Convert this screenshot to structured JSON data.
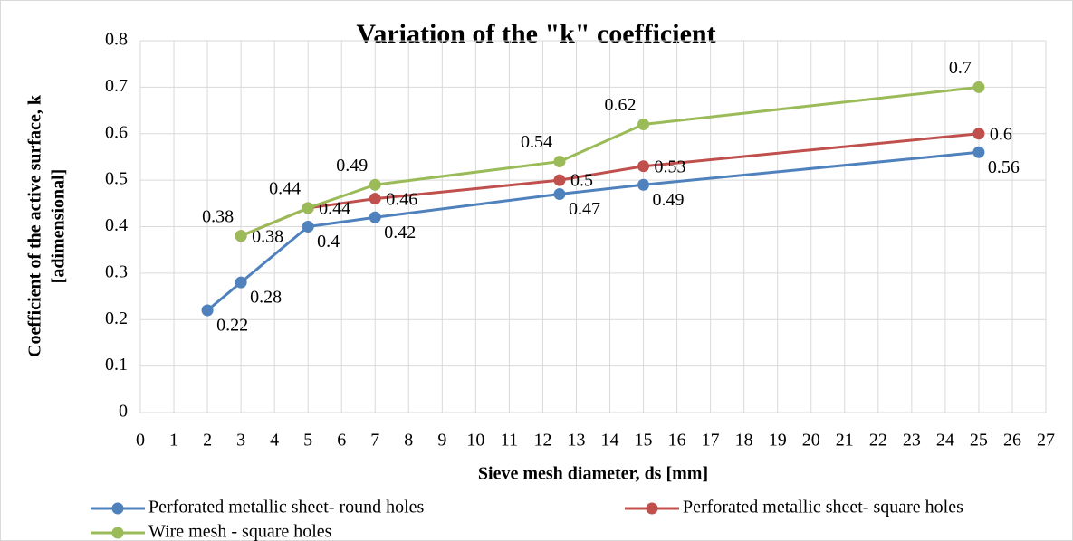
{
  "chart_data": {
    "type": "line",
    "title": "Variation of the \"k\" coefficient",
    "x_label": "Sieve mesh diameter, ds [mm]",
    "y_label": [
      "Coefficient of the active surface, k",
      "[adimensional]"
    ],
    "series": [
      {
        "name": "Perforated metallic sheet- round holes",
        "color": "#4f81bd",
        "x": [
          2,
          3,
          5,
          7,
          12.5,
          15,
          25
        ],
        "values": [
          0.22,
          0.28,
          0.4,
          0.42,
          0.47,
          0.49,
          0.56
        ]
      },
      {
        "name": "Perforated metallic sheet- square holes",
        "color": "#c0504d",
        "x": [
          3,
          5,
          7,
          12.5,
          15,
          25
        ],
        "values": [
          0.38,
          0.44,
          0.46,
          0.5,
          0.53,
          0.6
        ]
      },
      {
        "name": "Wire mesh - square holes",
        "color": "#9bbb59",
        "x": [
          3,
          5,
          7,
          12.5,
          15,
          25
        ],
        "values": [
          0.38,
          0.44,
          0.49,
          0.54,
          0.62,
          0.7
        ]
      }
    ],
    "xlim": [
      0,
      27
    ],
    "xticks": [
      0,
      1,
      2,
      3,
      4,
      5,
      6,
      7,
      8,
      9,
      10,
      11,
      12,
      13,
      14,
      15,
      16,
      17,
      18,
      19,
      20,
      21,
      22,
      23,
      24,
      25,
      26,
      27
    ],
    "ylim": [
      0,
      0.8
    ],
    "yticks": [
      0,
      0.1,
      0.2,
      0.3,
      0.4,
      0.5,
      0.6,
      0.7,
      0.8
    ],
    "grid": true,
    "legend": "bottom"
  }
}
